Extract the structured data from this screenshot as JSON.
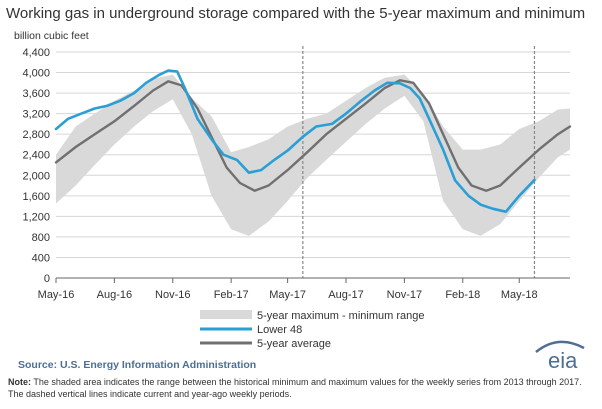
{
  "header": {
    "title": "Working gas in underground  storage compared with the 5-year maximum and minimum",
    "units": "billion cubic feet"
  },
  "footer": {
    "source": "Source:  U.S. Energy Information Administration",
    "note_label": "Note:",
    "note_text": "The shaded area indicates the range between the historical minimum and maximum values for the weekly series from 2013 through 2017. The dashed vertical lines indicate current and year-ago weekly periods.",
    "logo_text": "eia"
  },
  "chart_data": {
    "type": "area",
    "ylim": [
      0,
      4400
    ],
    "y_ticks": [
      0,
      400,
      800,
      1200,
      1600,
      2000,
      2400,
      2800,
      3200,
      3600,
      4000,
      4400
    ],
    "y_tick_labels": [
      "0",
      "400",
      "800",
      "1,200",
      "1,600",
      "2,000",
      "2,400",
      "2,800",
      "3,200",
      "3,600",
      "4,000",
      "4,400"
    ],
    "xlim": [
      "2016-05-01",
      "2018-07-20"
    ],
    "x_ticks": [
      "2016-05-01",
      "2016-08-01",
      "2016-11-01",
      "2017-02-01",
      "2017-05-01",
      "2017-08-01",
      "2017-11-01",
      "2018-02-01",
      "2018-05-01"
    ],
    "x_tick_labels": [
      "May-16",
      "Aug-16",
      "Nov-16",
      "Feb-17",
      "May-17",
      "Aug-17",
      "Nov-17",
      "Feb-18",
      "May-18"
    ],
    "reference_lines": [
      "2017-05-25",
      "2018-05-25"
    ],
    "legend": {
      "range": "5-year maximum - minimum range",
      "lower48": "Lower 48",
      "average": "5-year average"
    },
    "colors": {
      "range": "#d9d9d9",
      "lower48": "#2a9fd6",
      "average": "#707070",
      "axis": "#666666"
    },
    "range": {
      "x": [
        "2016-05-01",
        "2016-06-01",
        "2016-07-01",
        "2016-08-01",
        "2016-09-01",
        "2016-10-01",
        "2016-11-01",
        "2016-12-01",
        "2017-01-01",
        "2017-02-01",
        "2017-03-01",
        "2017-04-01",
        "2017-05-01",
        "2017-06-01",
        "2017-07-01",
        "2017-08-01",
        "2017-09-01",
        "2017-10-01",
        "2017-11-01",
        "2017-12-01",
        "2018-01-01",
        "2018-02-01",
        "2018-03-01",
        "2018-04-01",
        "2018-05-01",
        "2018-06-01",
        "2018-07-01",
        "2018-07-20"
      ],
      "max": [
        2400,
        2950,
        3200,
        3450,
        3650,
        3880,
        3960,
        3500,
        3150,
        2450,
        2550,
        2700,
        2950,
        3100,
        3200,
        3450,
        3700,
        3900,
        3960,
        3600,
        2950,
        2500,
        2500,
        2600,
        2900,
        3050,
        3280,
        3300
      ],
      "min": [
        1450,
        1800,
        2200,
        2600,
        2950,
        3250,
        3480,
        2800,
        1600,
        950,
        820,
        1100,
        1500,
        1950,
        2300,
        2650,
        3000,
        3300,
        3550,
        3050,
        1500,
        950,
        820,
        1050,
        1500,
        1950,
        2350,
        2500
      ]
    },
    "series": [
      {
        "name": "Lower 48",
        "x": [
          "2016-05-01",
          "2016-05-20",
          "2016-06-10",
          "2016-07-01",
          "2016-07-20",
          "2016-08-10",
          "2016-09-01",
          "2016-09-20",
          "2016-10-10",
          "2016-10-25",
          "2016-11-08",
          "2016-11-20",
          "2016-12-10",
          "2017-01-01",
          "2017-01-20",
          "2017-02-10",
          "2017-03-01",
          "2017-03-20",
          "2017-04-10",
          "2017-05-01",
          "2017-05-25",
          "2017-06-15",
          "2017-07-10",
          "2017-08-01",
          "2017-08-25",
          "2017-09-15",
          "2017-10-05",
          "2017-10-25",
          "2017-11-10",
          "2017-11-25",
          "2017-12-10",
          "2018-01-01",
          "2018-01-20",
          "2018-02-10",
          "2018-03-01",
          "2018-03-20",
          "2018-04-10",
          "2018-05-01",
          "2018-05-25"
        ],
        "values": [
          2900,
          3100,
          3200,
          3300,
          3350,
          3450,
          3600,
          3800,
          3950,
          4040,
          4020,
          3700,
          3100,
          2700,
          2400,
          2300,
          2050,
          2100,
          2300,
          2480,
          2750,
          2950,
          3000,
          3200,
          3450,
          3650,
          3800,
          3790,
          3700,
          3500,
          3100,
          2500,
          1900,
          1600,
          1430,
          1350,
          1290,
          1600,
          1910
        ]
      },
      {
        "name": "5-year average",
        "x": [
          "2016-05-01",
          "2016-06-01",
          "2016-07-01",
          "2016-08-01",
          "2016-09-01",
          "2016-10-01",
          "2016-10-25",
          "2016-11-15",
          "2016-12-10",
          "2017-01-01",
          "2017-01-25",
          "2017-02-15",
          "2017-03-10",
          "2017-04-01",
          "2017-05-01",
          "2017-06-01",
          "2017-07-01",
          "2017-08-01",
          "2017-09-01",
          "2017-10-01",
          "2017-10-25",
          "2017-11-15",
          "2017-12-10",
          "2018-01-01",
          "2018-01-25",
          "2018-02-15",
          "2018-03-10",
          "2018-04-01",
          "2018-05-01",
          "2018-06-01",
          "2018-07-01",
          "2018-07-20"
        ],
        "values": [
          2250,
          2550,
          2800,
          3050,
          3350,
          3650,
          3830,
          3750,
          3300,
          2750,
          2150,
          1850,
          1700,
          1800,
          2100,
          2450,
          2800,
          3100,
          3400,
          3700,
          3850,
          3800,
          3400,
          2800,
          2150,
          1800,
          1700,
          1800,
          2150,
          2500,
          2800,
          2950
        ]
      }
    ]
  }
}
